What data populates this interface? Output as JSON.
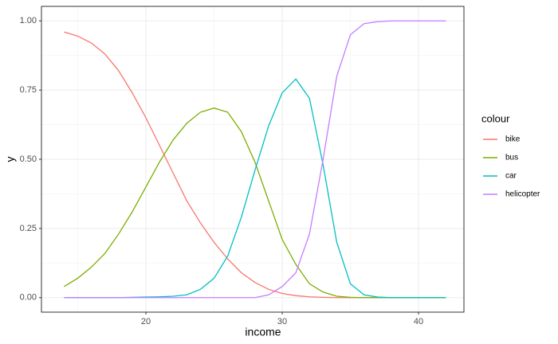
{
  "chart_data": {
    "type": "line",
    "x_label": "income",
    "y_label": "y",
    "legend_title": "colour",
    "x": [
      14,
      15,
      16,
      17,
      18,
      19,
      20,
      21,
      22,
      23,
      24,
      25,
      26,
      27,
      28,
      29,
      30,
      31,
      32,
      33,
      34,
      35,
      36,
      37,
      38,
      39,
      40,
      41,
      42
    ],
    "series": [
      {
        "name": "bike",
        "color": "#F8766D",
        "values": [
          0.96,
          0.945,
          0.92,
          0.88,
          0.82,
          0.74,
          0.65,
          0.55,
          0.45,
          0.35,
          0.27,
          0.2,
          0.14,
          0.09,
          0.055,
          0.03,
          0.015,
          0.007,
          0.003,
          0.001,
          0,
          0,
          0,
          0,
          0,
          0,
          0,
          0,
          0
        ]
      },
      {
        "name": "bus",
        "color": "#7CAE00",
        "values": [
          0.04,
          0.07,
          0.11,
          0.16,
          0.23,
          0.31,
          0.4,
          0.49,
          0.57,
          0.63,
          0.67,
          0.685,
          0.67,
          0.6,
          0.49,
          0.35,
          0.21,
          0.12,
          0.05,
          0.02,
          0.005,
          0.001,
          0,
          0,
          0,
          0,
          0,
          0,
          0
        ]
      },
      {
        "name": "car",
        "color": "#00BFC4",
        "values": [
          0,
          0,
          0,
          0,
          0,
          0.001,
          0.002,
          0.003,
          0.005,
          0.01,
          0.03,
          0.07,
          0.15,
          0.29,
          0.46,
          0.62,
          0.74,
          0.79,
          0.72,
          0.48,
          0.2,
          0.05,
          0.01,
          0.002,
          0,
          0,
          0,
          0,
          0
        ]
      },
      {
        "name": "helicopter",
        "color": "#C77CFF",
        "values": [
          0,
          0,
          0,
          0,
          0,
          0,
          0,
          0,
          0,
          0,
          0,
          0,
          0,
          0,
          0,
          0.01,
          0.04,
          0.09,
          0.23,
          0.5,
          0.8,
          0.95,
          0.99,
          0.997,
          1,
          1,
          1,
          1,
          1
        ]
      }
    ],
    "xlim": [
      12.34,
      43.33
    ],
    "ylim": [
      -0.0525,
      1.0525
    ],
    "xticks": [
      20,
      30,
      40
    ],
    "yticks": [
      {
        "value": 0,
        "label": "0.00"
      },
      {
        "value": 0.25,
        "label": "0.25"
      },
      {
        "value": 0.5,
        "label": "0.50"
      },
      {
        "value": 0.75,
        "label": "0.75"
      },
      {
        "value": 1,
        "label": "1.00"
      }
    ],
    "grid": true,
    "legend": "right"
  }
}
